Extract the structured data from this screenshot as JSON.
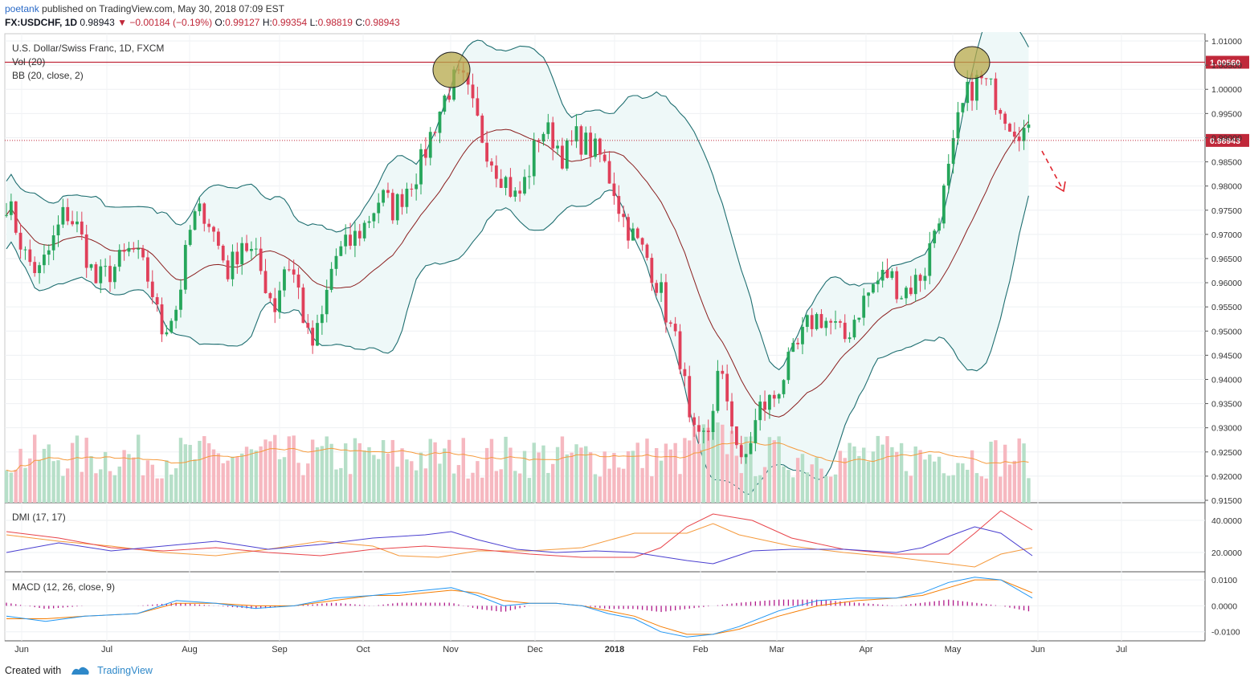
{
  "header": {
    "user": "poetank",
    "published": "published on TradingView.com, May 30, 2018 07:09 EST",
    "symbol": "FX:USDCHF, 1D",
    "last": "0.98943",
    "change": "−0.00184 (−0.19%)",
    "o_label": "O:",
    "o_value": "0.99127",
    "h_label": "H:",
    "h_value": "0.99354",
    "l_label": "L:",
    "l_value": "0.98819",
    "c_label": "C:",
    "c_value": "0.98943"
  },
  "legend": {
    "main": "U.S. Dollar/Swiss Franc, 1D, FXCM",
    "vol": "Vol (20)",
    "bb": "BB (20, close, 2)",
    "dmi": "DMI (17, 17)",
    "macd": "MACD (12, 26, close, 9)"
  },
  "footer": {
    "created": "Created with",
    "brand": "TradingView"
  },
  "colors": {
    "up": "#26a65b",
    "down": "#e0405a",
    "up_vol": "#b6dfc8",
    "down_vol": "#f6b8c0",
    "bb_band": "#1e6e70",
    "bb_fill": "#eef8f8",
    "bb_basis": "#8b1f1f",
    "resistance": "#c0283a",
    "dmi_plus": "#4a3fd0",
    "dmi_minus": "#e8444a",
    "adx": "#f59a3c",
    "macd": "#2196f3",
    "signal": "#f57c00",
    "histogram": "#b01a8a"
  },
  "chart_data": [
    {
      "type": "candlestick",
      "title": "U.S. Dollar/Swiss Franc, 1D, FXCM",
      "x_ticks": [
        "Jun",
        "Jul",
        "Aug",
        "Sep",
        "Oct",
        "Nov",
        "Dec",
        "2018",
        "Feb",
        "Mar",
        "Apr",
        "May",
        "Jun",
        "Jul"
      ],
      "y_ticks": [
        "1.01000",
        "1.00500",
        "1.00000",
        "0.99500",
        "0.99000",
        "0.98500",
        "0.98000",
        "0.97500",
        "0.97000",
        "0.96500",
        "0.96000",
        "0.95500",
        "0.95000",
        "0.94500",
        "0.94000",
        "0.93500",
        "0.93000",
        "0.92500",
        "0.92000",
        "0.91500"
      ],
      "ylim": [
        0.9145,
        1.0115
      ],
      "resistance_level": 1.0056,
      "resistance_label": "1.00560",
      "last_price": 0.98943,
      "last_price_label": "0.98943",
      "close_path": [
        [
          0,
          0.977
        ],
        [
          8,
          0.971
        ],
        [
          15,
          0.965
        ],
        [
          25,
          0.962
        ],
        [
          35,
          0.968
        ],
        [
          45,
          0.975
        ],
        [
          55,
          0.971
        ],
        [
          68,
          0.96
        ],
        [
          82,
          0.963
        ],
        [
          96,
          0.967
        ],
        [
          110,
          0.96
        ],
        [
          118,
          0.95
        ],
        [
          130,
          0.955
        ],
        [
          142,
          0.973
        ],
        [
          152,
          0.975
        ],
        [
          160,
          0.969
        ],
        [
          170,
          0.962
        ],
        [
          180,
          0.969
        ],
        [
          192,
          0.964
        ],
        [
          205,
          0.955
        ],
        [
          214,
          0.965
        ],
        [
          222,
          0.96
        ],
        [
          232,
          0.946
        ],
        [
          240,
          0.951
        ],
        [
          250,
          0.965
        ],
        [
          262,
          0.968
        ],
        [
          274,
          0.972
        ],
        [
          286,
          0.978
        ],
        [
          296,
          0.975
        ],
        [
          306,
          0.98
        ],
        [
          316,
          0.984
        ],
        [
          326,
          0.992
        ],
        [
          336,
          0.999
        ],
        [
          343,
          1.002
        ],
        [
          350,
          1.001
        ],
        [
          356,
          0.996
        ],
        [
          364,
          0.99
        ],
        [
          372,
          0.985
        ],
        [
          382,
          0.981
        ],
        [
          390,
          0.977
        ],
        [
          398,
          0.982
        ],
        [
          408,
          0.992
        ],
        [
          418,
          0.99
        ],
        [
          426,
          0.986
        ],
        [
          436,
          0.99
        ],
        [
          446,
          0.988
        ],
        [
          454,
          0.986
        ],
        [
          464,
          0.98
        ],
        [
          470,
          0.974
        ],
        [
          480,
          0.969
        ],
        [
          490,
          0.965
        ],
        [
          500,
          0.958
        ],
        [
          508,
          0.95
        ],
        [
          516,
          0.944
        ],
        [
          522,
          0.93
        ],
        [
          528,
          0.926
        ],
        [
          536,
          0.929
        ],
        [
          544,
          0.941
        ],
        [
          550,
          0.937
        ],
        [
          556,
          0.93
        ],
        [
          562,
          0.921
        ],
        [
          568,
          0.927
        ],
        [
          576,
          0.934
        ],
        [
          586,
          0.936
        ],
        [
          594,
          0.941
        ],
        [
          604,
          0.946
        ],
        [
          614,
          0.952
        ],
        [
          622,
          0.953
        ],
        [
          632,
          0.951
        ],
        [
          640,
          0.948
        ],
        [
          652,
          0.955
        ],
        [
          664,
          0.96
        ],
        [
          674,
          0.962
        ],
        [
          684,
          0.958
        ],
        [
          694,
          0.96
        ],
        [
          702,
          0.963
        ],
        [
          708,
          0.97
        ],
        [
          716,
          0.978
        ],
        [
          722,
          0.985
        ],
        [
          728,
          0.994
        ],
        [
          736,
          1.0
        ],
        [
          744,
          1.002
        ],
        [
          752,
          1.0
        ],
        [
          760,
          0.997
        ],
        [
          768,
          0.993
        ],
        [
          776,
          0.992
        ],
        [
          784,
          0.989
        ]
      ],
      "series": [
        {
          "name": "",
          "kind": "bb_upper"
        },
        {
          "name": "",
          "kind": "bb_basis"
        },
        {
          "name": "",
          "kind": "bb_lower"
        }
      ]
    },
    {
      "type": "bar",
      "title": "Vol (20)",
      "note": "volume histogram with 20-period moving average"
    },
    {
      "type": "line",
      "title": "DMI (17, 17)",
      "y_ticks": [
        "40.0000",
        "20.0000"
      ],
      "ylim": [
        8,
        50
      ],
      "plus_di": [
        [
          0,
          20
        ],
        [
          40,
          26
        ],
        [
          80,
          21
        ],
        [
          120,
          24
        ],
        [
          160,
          27
        ],
        [
          200,
          22
        ],
        [
          240,
          25
        ],
        [
          280,
          29
        ],
        [
          320,
          31
        ],
        [
          340,
          33
        ],
        [
          360,
          28
        ],
        [
          390,
          22
        ],
        [
          420,
          20
        ],
        [
          450,
          21
        ],
        [
          480,
          20
        ],
        [
          520,
          15
        ],
        [
          540,
          13
        ],
        [
          570,
          21
        ],
        [
          600,
          22
        ],
        [
          640,
          22
        ],
        [
          680,
          20
        ],
        [
          700,
          23
        ],
        [
          720,
          30
        ],
        [
          740,
          36
        ],
        [
          760,
          32
        ],
        [
          784,
          18
        ]
      ],
      "minus_di": [
        [
          0,
          33
        ],
        [
          40,
          29
        ],
        [
          80,
          23
        ],
        [
          120,
          21
        ],
        [
          160,
          23
        ],
        [
          200,
          20
        ],
        [
          240,
          18
        ],
        [
          280,
          22
        ],
        [
          320,
          24
        ],
        [
          360,
          22
        ],
        [
          400,
          19
        ],
        [
          440,
          17
        ],
        [
          480,
          17
        ],
        [
          500,
          23
        ],
        [
          520,
          36
        ],
        [
          540,
          44
        ],
        [
          570,
          40
        ],
        [
          600,
          29
        ],
        [
          640,
          22
        ],
        [
          680,
          19
        ],
        [
          720,
          19
        ],
        [
          740,
          32
        ],
        [
          760,
          46
        ],
        [
          784,
          34
        ]
      ],
      "adx": [
        [
          0,
          31
        ],
        [
          40,
          27
        ],
        [
          80,
          24
        ],
        [
          120,
          20
        ],
        [
          160,
          18
        ],
        [
          200,
          22
        ],
        [
          240,
          27
        ],
        [
          280,
          24
        ],
        [
          300,
          18
        ],
        [
          330,
          17
        ],
        [
          360,
          21
        ],
        [
          400,
          21
        ],
        [
          440,
          23
        ],
        [
          480,
          32
        ],
        [
          520,
          32
        ],
        [
          540,
          38
        ],
        [
          560,
          31
        ],
        [
          600,
          24
        ],
        [
          640,
          20
        ],
        [
          680,
          17
        ],
        [
          720,
          13
        ],
        [
          740,
          11
        ],
        [
          760,
          19
        ],
        [
          784,
          23
        ]
      ]
    },
    {
      "type": "line",
      "title": "MACD (12, 26, close, 9)",
      "y_ticks": [
        "0.0100",
        "0.0000",
        "-0.0100"
      ],
      "ylim": [
        -0.0135,
        0.0125
      ],
      "macd": [
        [
          0,
          -0.004
        ],
        [
          30,
          -0.006
        ],
        [
          60,
          -0.004
        ],
        [
          100,
          -0.003
        ],
        [
          130,
          0.002
        ],
        [
          160,
          0.001
        ],
        [
          190,
          -0.001
        ],
        [
          220,
          0.0
        ],
        [
          250,
          0.003
        ],
        [
          280,
          0.004
        ],
        [
          300,
          0.005
        ],
        [
          320,
          0.006
        ],
        [
          340,
          0.007
        ],
        [
          360,
          0.004
        ],
        [
          380,
          0.0
        ],
        [
          400,
          0.001
        ],
        [
          420,
          0.001
        ],
        [
          440,
          0.0
        ],
        [
          460,
          -0.003
        ],
        [
          480,
          -0.005
        ],
        [
          500,
          -0.01
        ],
        [
          520,
          -0.012
        ],
        [
          540,
          -0.011
        ],
        [
          560,
          -0.008
        ],
        [
          590,
          -0.002
        ],
        [
          620,
          0.002
        ],
        [
          650,
          0.003
        ],
        [
          680,
          0.003
        ],
        [
          700,
          0.005
        ],
        [
          720,
          0.009
        ],
        [
          740,
          0.011
        ],
        [
          760,
          0.01
        ],
        [
          784,
          0.003
        ]
      ],
      "signal": [
        [
          0,
          -0.005
        ],
        [
          30,
          -0.005
        ],
        [
          60,
          -0.004
        ],
        [
          100,
          -0.003
        ],
        [
          130,
          0.001
        ],
        [
          160,
          0.001
        ],
        [
          190,
          0.0
        ],
        [
          220,
          0.0
        ],
        [
          250,
          0.002
        ],
        [
          280,
          0.004
        ],
        [
          300,
          0.004
        ],
        [
          320,
          0.005
        ],
        [
          340,
          0.006
        ],
        [
          360,
          0.005
        ],
        [
          380,
          0.002
        ],
        [
          400,
          0.001
        ],
        [
          420,
          0.001
        ],
        [
          440,
          0.0
        ],
        [
          460,
          -0.002
        ],
        [
          480,
          -0.004
        ],
        [
          500,
          -0.008
        ],
        [
          520,
          -0.011
        ],
        [
          540,
          -0.011
        ],
        [
          560,
          -0.009
        ],
        [
          590,
          -0.004
        ],
        [
          620,
          0.0
        ],
        [
          650,
          0.002
        ],
        [
          680,
          0.003
        ],
        [
          700,
          0.004
        ],
        [
          720,
          0.007
        ],
        [
          740,
          0.01
        ],
        [
          760,
          0.01
        ],
        [
          784,
          0.005
        ]
      ]
    }
  ]
}
